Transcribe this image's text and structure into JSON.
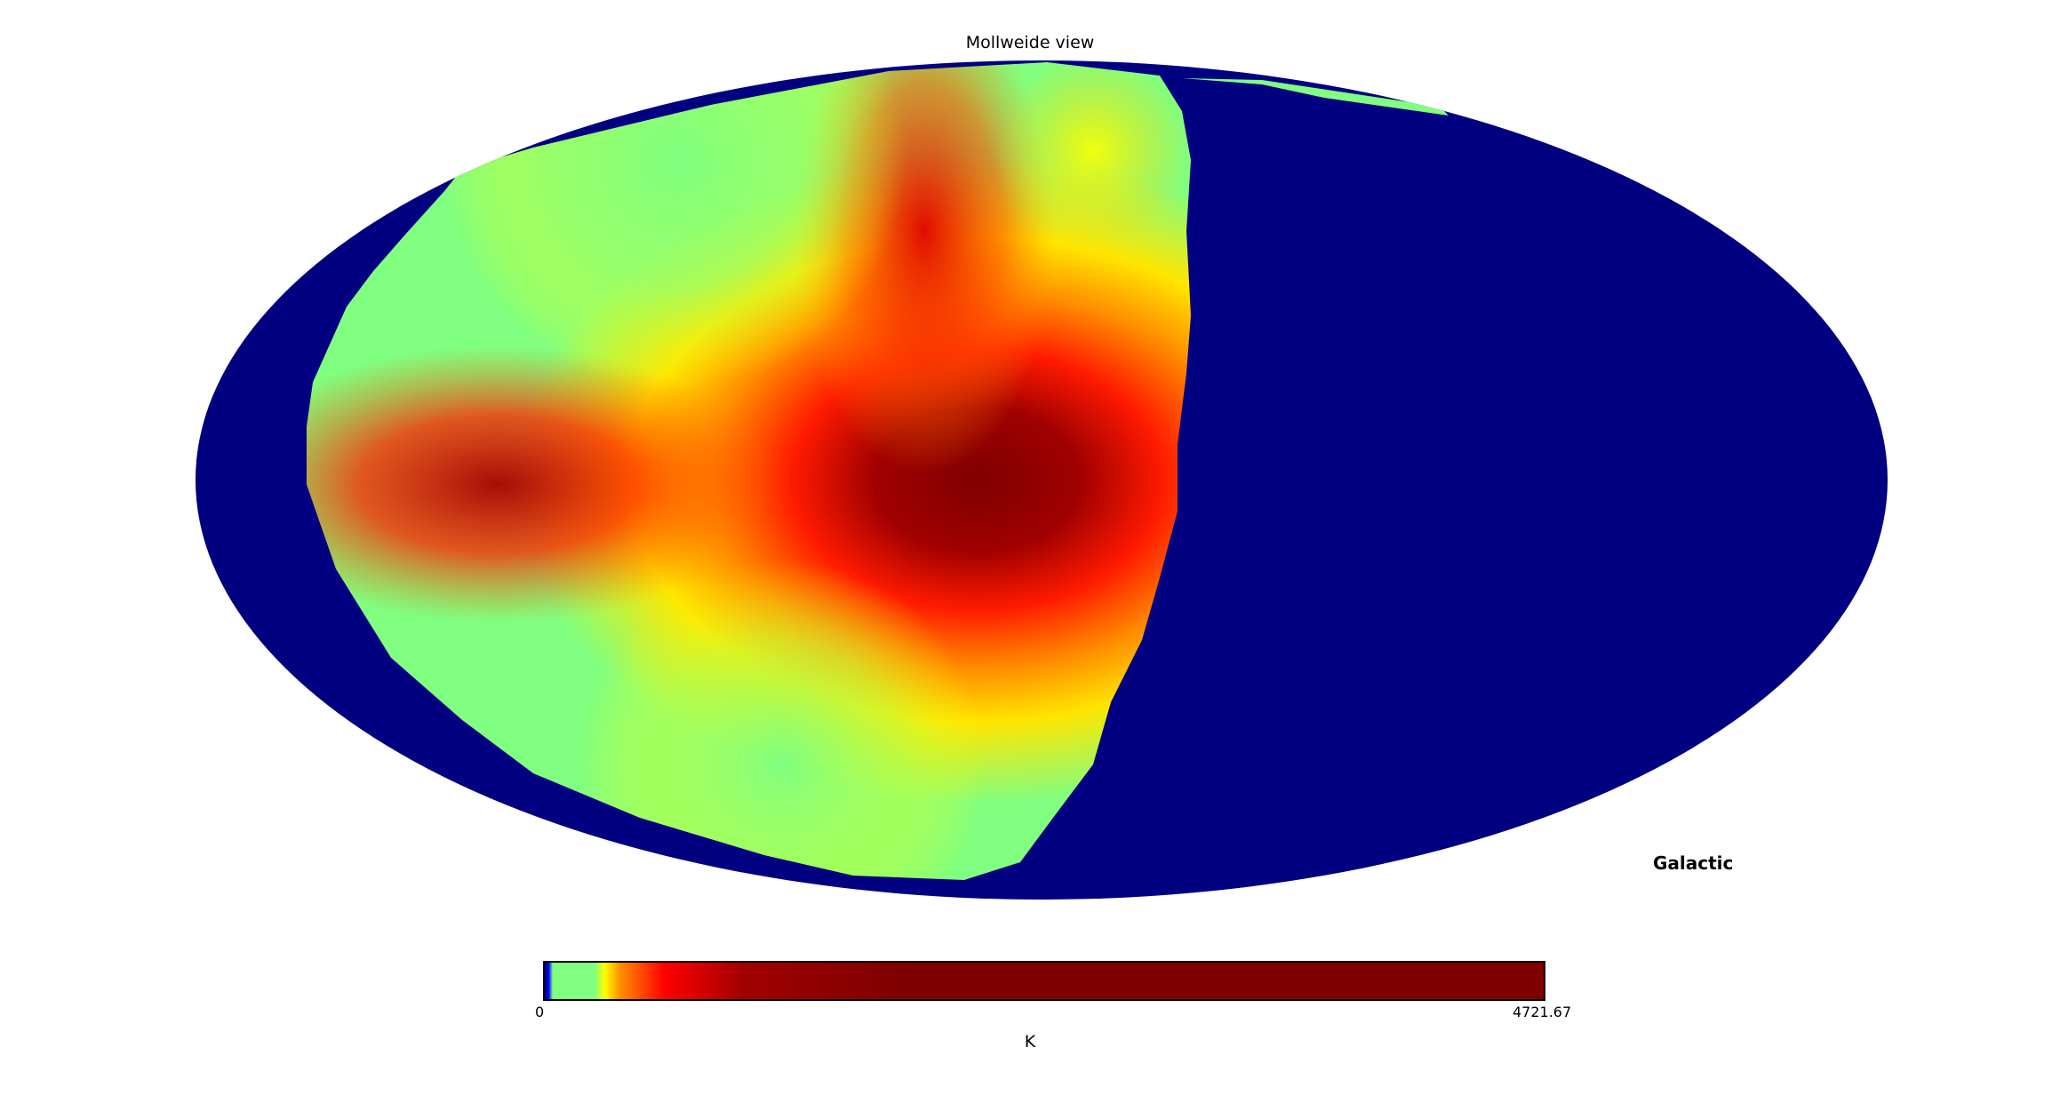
{
  "title": "Mollweide view",
  "coord_system": "Galactic",
  "projection": "mollweide",
  "colormap": "jet",
  "colorbar": {
    "min_label": "0",
    "max_label": "4721.67",
    "unit": "K",
    "min": 0,
    "max": 4721.67
  },
  "colors": {
    "unseen_region": "#000080",
    "low": "#80ff80",
    "mid": "#ffff00",
    "high": "#ff0000",
    "peak": "#800000"
  },
  "map": {
    "coverage": "western half of the sky (positive galactic longitude)",
    "unseen_fill": "#000080",
    "peak_value_region": "near galactic center along the equator",
    "peak_value": 4721.67
  }
}
